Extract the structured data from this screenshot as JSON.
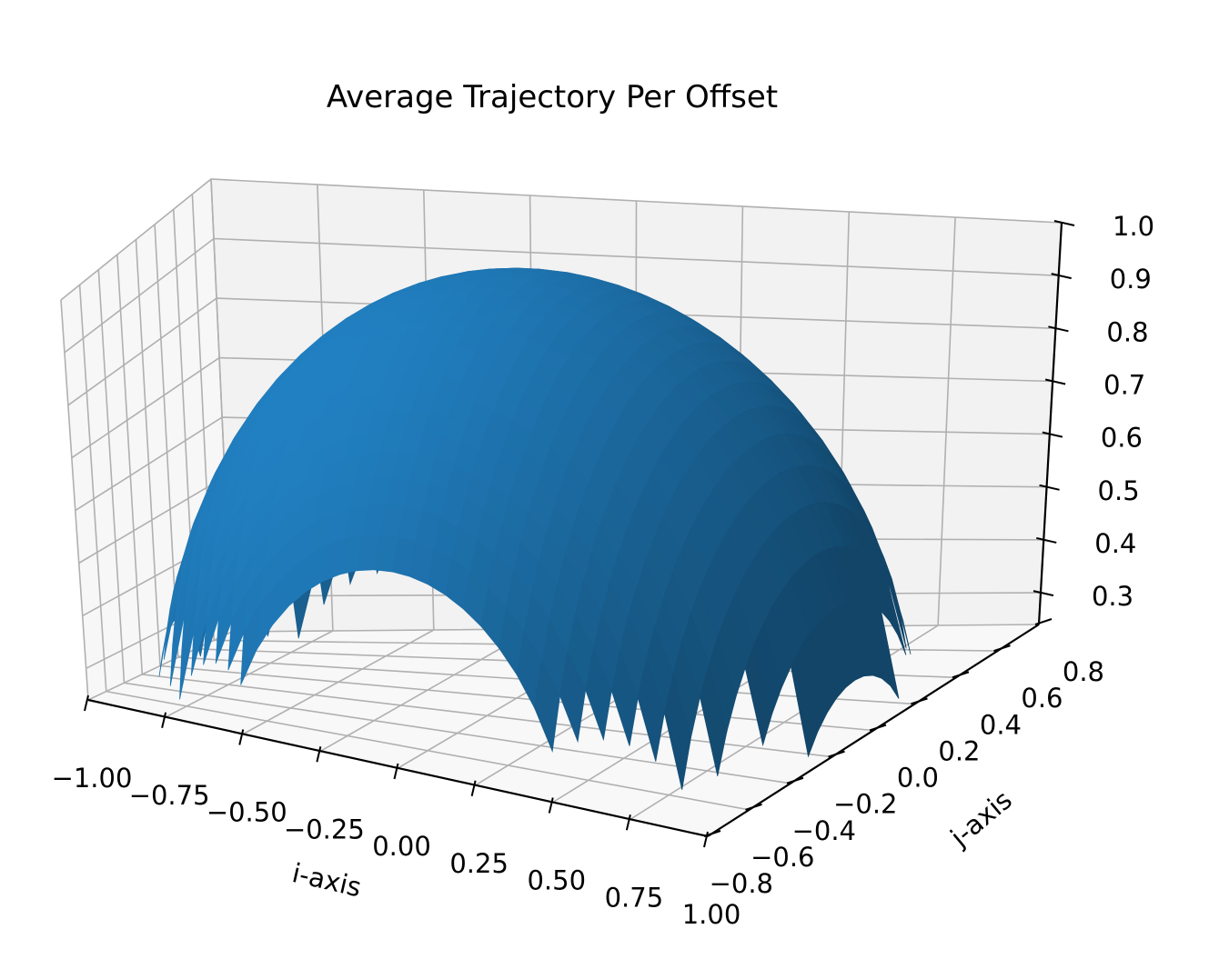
{
  "chart_data": {
    "type": "surface3d",
    "title": "Average Trajectory Per Offset",
    "xlabel": "i-axis",
    "ylabel": "j-axis",
    "zlabel": "",
    "x_ticks": [
      "−1.00",
      "−0.75",
      "−0.50",
      "−0.25",
      "0.00",
      "0.25",
      "0.50",
      "0.75",
      "1.00"
    ],
    "x_tick_values": [
      -1.0,
      -0.75,
      -0.5,
      -0.25,
      0.0,
      0.25,
      0.5,
      0.75,
      1.0
    ],
    "y_ticks": [
      "−0.8",
      "−0.6",
      "−0.4",
      "−0.2",
      "0.0",
      "0.2",
      "0.4",
      "0.6",
      "0.8"
    ],
    "y_tick_values": [
      -0.8,
      -0.6,
      -0.4,
      -0.2,
      0.0,
      0.2,
      0.4,
      0.6,
      0.8
    ],
    "z_ticks": [
      "0.3",
      "0.4",
      "0.5",
      "0.6",
      "0.7",
      "0.8",
      "0.9",
      "1.0"
    ],
    "z_tick_values": [
      0.3,
      0.4,
      0.5,
      0.6,
      0.7,
      0.8,
      0.9,
      1.0
    ],
    "xlim": [
      -1.0,
      1.0
    ],
    "ylim": [
      -0.8,
      0.8
    ],
    "zlim": [
      0.24,
      1.0
    ],
    "surface": {
      "shape": "spherical cap",
      "equation": "z = sqrt(1 - x^2 - y^2)",
      "x_range": [
        -1.0,
        1.0
      ],
      "y_range": [
        -0.8,
        0.8
      ],
      "peak_z": 1.0,
      "color": "#1f77b4"
    },
    "grid": true
  }
}
